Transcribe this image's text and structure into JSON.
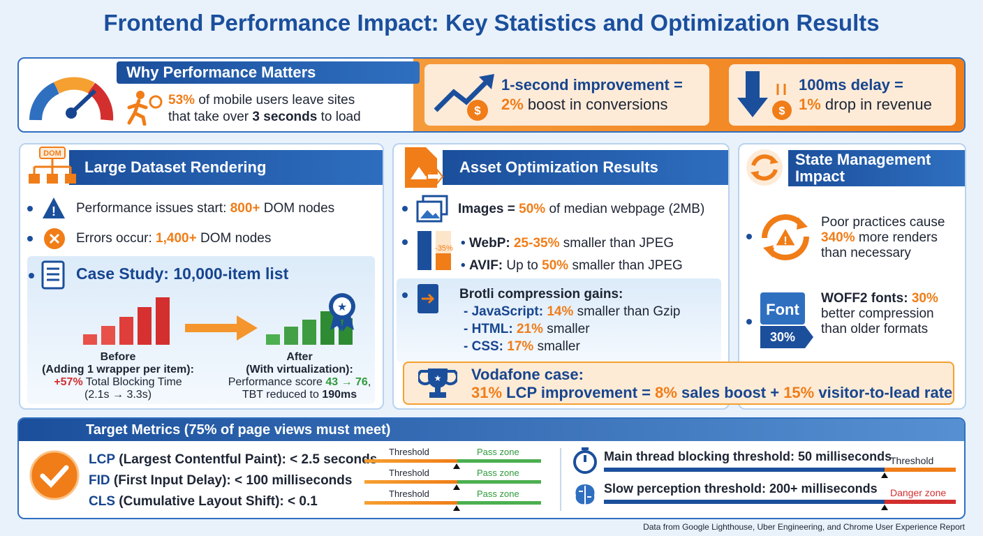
{
  "title": "Frontend Performance Impact: Key Statistics and Optimization Results",
  "why": {
    "heading": "Why Performance Matters",
    "stat": "53%",
    "line1": "of mobile users leave sites",
    "line2": "that take over",
    "emphasis": "3 seconds",
    "line2_end": "to load"
  },
  "highlights": [
    {
      "lead": "1-second improvement =",
      "stat": "2%",
      "text": "boost in conversions"
    },
    {
      "lead": "100ms delay =",
      "stat": "1%",
      "text": "drop in revenue"
    }
  ],
  "dataset": {
    "heading": "Large Dataset Rendering",
    "icon_label": "DOM",
    "items": [
      {
        "label": "Performance issues start:",
        "stat": "800+",
        "unit": "DOM nodes"
      },
      {
        "label": "Errors occur:",
        "stat": "1,400+",
        "unit": "DOM nodes"
      }
    ],
    "case_study": {
      "heading": "Case Study: 10,000-item list",
      "before": {
        "title": "Before",
        "subtitle": "(Adding 1 wrapper per item):",
        "stat": "+57%",
        "text": "Total Blocking Time",
        "detail": "(2.1s → 3.3s)"
      },
      "after": {
        "title": "After",
        "subtitle": "(With virtualization):",
        "text": "Performance score",
        "stat": "43 → 76",
        "separator": ",",
        "text2": "TBT reduced to",
        "stat2": "190ms"
      }
    }
  },
  "assets": {
    "heading": "Asset Optimization Results",
    "images": {
      "label": "Images =",
      "stat": "50%",
      "text": "of median webpage (2MB)"
    },
    "icon_label": "-35%",
    "formats": [
      {
        "name": "WebP:",
        "stat": "25-35%",
        "text": "smaller than JPEG"
      },
      {
        "name": "AVIF:",
        "prefix": "Up to",
        "stat": "50%",
        "text": "smaller than JPEG"
      }
    ],
    "brotli": {
      "heading": "Brotli compression gains:",
      "items": [
        {
          "name": "- JavaScript:",
          "stat": "14%",
          "text": "smaller than Gzip"
        },
        {
          "name": "- HTML:",
          "stat": "21%",
          "text": "smaller"
        },
        {
          "name": "- CSS:",
          "stat": "17%",
          "text": "smaller"
        }
      ]
    },
    "vodafone": {
      "heading": "Vodafone case:",
      "stat1": "31%",
      "text1": "LCP improvement =",
      "stat2": "8%",
      "text2": "sales boost +",
      "stat3": "15%",
      "text3": "visitor-to-lead rate"
    }
  },
  "state": {
    "heading": "State Management Impact",
    "renders": {
      "lead": "Poor practices cause",
      "stat": "340%",
      "text": "more renders than necessary"
    },
    "fonts": {
      "lead": "WOFF2 fonts:",
      "stat": "30%",
      "text": "better compression than older formats",
      "icon_label": "Font",
      "icon_stat": "30%"
    }
  },
  "targets": {
    "heading": "Target Metrics (75% of page views must meet)",
    "metrics": [
      {
        "name": "LCP",
        "text": "(Largest Contentful Paint): < 2.5 seconds",
        "threshold": "Threshold",
        "zone": "Pass zone"
      },
      {
        "name": "FID",
        "text": "(First Input Delay): < 100 milliseconds",
        "threshold": "Threshold",
        "zone": "Pass zone"
      },
      {
        "name": "CLS",
        "text": "(Cumulative Layout Shift): < 0.1",
        "threshold": "Threshold",
        "zone": "Pass zone"
      }
    ],
    "thresholds": [
      {
        "text": "Main thread blocking threshold: 50 milliseconds",
        "marker": "Threshold"
      },
      {
        "text": "Slow perception threshold: 200+ milliseconds",
        "marker": "Danger zone"
      }
    ]
  },
  "footer": "Data from Google Lighthouse, Uber Engineering, and Chrome User Experience Report"
}
